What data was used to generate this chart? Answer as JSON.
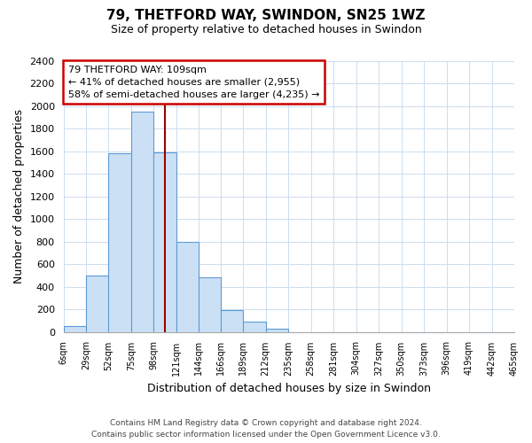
{
  "title": "79, THETFORD WAY, SWINDON, SN25 1WZ",
  "subtitle": "Size of property relative to detached houses in Swindon",
  "xlabel": "Distribution of detached houses by size in Swindon",
  "ylabel": "Number of detached properties",
  "footer_line1": "Contains HM Land Registry data © Crown copyright and database right 2024.",
  "footer_line2": "Contains public sector information licensed under the Open Government Licence v3.0.",
  "bin_edges": [
    6,
    29,
    52,
    75,
    98,
    121,
    144,
    166,
    189,
    212,
    235,
    258,
    281,
    304,
    327,
    350,
    373,
    396,
    419,
    442,
    465
  ],
  "bin_labels": [
    "6sqm",
    "29sqm",
    "52sqm",
    "75sqm",
    "98sqm",
    "121sqm",
    "144sqm",
    "166sqm",
    "189sqm",
    "212sqm",
    "235sqm",
    "258sqm",
    "281sqm",
    "304sqm",
    "327sqm",
    "350sqm",
    "373sqm",
    "396sqm",
    "419sqm",
    "442sqm",
    "465sqm"
  ],
  "counts": [
    50,
    500,
    1580,
    1950,
    1590,
    800,
    480,
    190,
    90,
    30,
    0,
    0,
    0,
    0,
    0,
    0,
    0,
    0,
    0,
    0
  ],
  "bar_facecolor": "#cce0f5",
  "bar_edgecolor": "#5b9bd5",
  "property_value": 109,
  "vline_color": "#9b0000",
  "annotation_box_edgecolor": "#cc0000",
  "annotation_line1": "79 THETFORD WAY: 109sqm",
  "annotation_line2": "← 41% of detached houses are smaller (2,955)",
  "annotation_line3": "58% of semi-detached houses are larger (4,235) →",
  "ylim": [
    0,
    2400
  ],
  "yticks": [
    0,
    200,
    400,
    600,
    800,
    1000,
    1200,
    1400,
    1600,
    1800,
    2000,
    2200,
    2400
  ],
  "background_color": "#ffffff",
  "grid_color": "#ccddee"
}
